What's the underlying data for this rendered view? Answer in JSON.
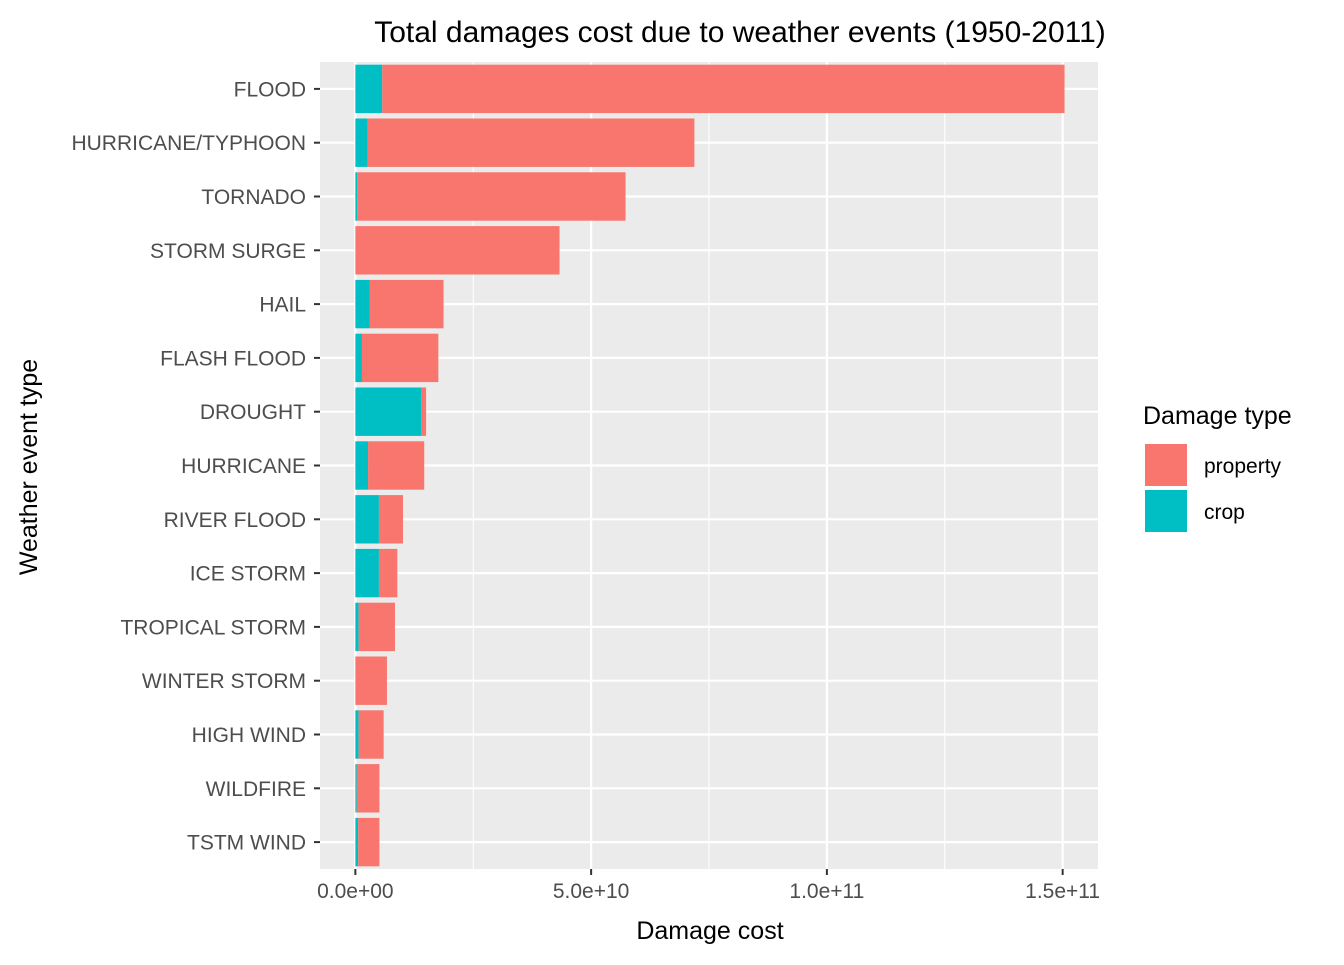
{
  "chart_data": {
    "type": "bar",
    "orientation": "horizontal",
    "stacked": true,
    "title": "Total damages cost due to weather events (1950-2011)",
    "xlabel": "Damage cost",
    "ylabel": "Weather event type",
    "xlim": [
      -7500000000,
      157500000000
    ],
    "x_ticks": [
      {
        "value": 0,
        "label": "0.0e+00"
      },
      {
        "value": 50000000000,
        "label": "5.0e+10"
      },
      {
        "value": 100000000000,
        "label": "1.0e+11"
      },
      {
        "value": 150000000000,
        "label": "1.5e+11"
      }
    ],
    "x_minor_ticks": [
      25000000000,
      75000000000,
      125000000000
    ],
    "grid": true,
    "panel_background": "#ebebeb",
    "categories": [
      "FLOOD",
      "HURRICANE/TYPHOON",
      "TORNADO",
      "STORM SURGE",
      "HAIL",
      "FLASH FLOOD",
      "DROUGHT",
      "HURRICANE",
      "RIVER FLOOD",
      "ICE STORM",
      "TROPICAL STORM",
      "WINTER STORM",
      "HIGH WIND",
      "WILDFIRE",
      "TSTM WIND"
    ],
    "series": [
      {
        "name": "crop",
        "color": "#00bfc4",
        "values": [
          5700000000,
          2600000000,
          400000000,
          0,
          3000000000,
          1400000000,
          14000000000,
          2700000000,
          5000000000,
          5000000000,
          700000000,
          0,
          700000000,
          300000000,
          600000000
        ]
      },
      {
        "name": "property",
        "color": "#f8766d",
        "values": [
          144700000000,
          69300000000,
          56900000000,
          43300000000,
          15700000000,
          16200000000,
          1000000000,
          11900000000,
          5100000000,
          3900000000,
          7700000000,
          6700000000,
          5300000000,
          4800000000,
          4500000000
        ]
      }
    ],
    "legend": {
      "title": "Damage type",
      "placement": "right",
      "entries": [
        {
          "label": "property",
          "color": "#f8766d"
        },
        {
          "label": "crop",
          "color": "#00bfc4"
        }
      ]
    }
  }
}
